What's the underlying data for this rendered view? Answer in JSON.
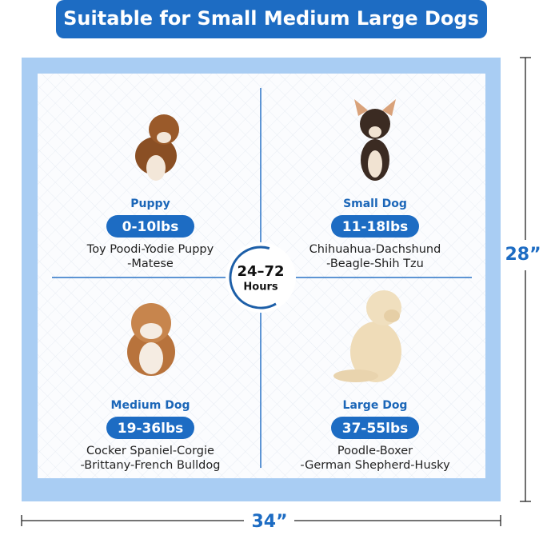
{
  "header": {
    "title": "Suitable for Small Medium Large Dogs"
  },
  "center_badge": {
    "line1": "24–72",
    "line2": "Hours"
  },
  "dimensions": {
    "height": "28”",
    "width": "34”"
  },
  "quadrants": [
    {
      "label": "Puppy",
      "weight": "0-10lbs",
      "breeds": [
        "Toy Poodi-Yodie Puppy",
        "-Matese"
      ]
    },
    {
      "label": "Small Dog",
      "weight": "11-18lbs",
      "breeds": [
        "Chihuahua-Dachshund",
        "-Beagle-Shih Tzu"
      ]
    },
    {
      "label": "Medium Dog",
      "weight": "19-36lbs",
      "breeds": [
        "Cocker Spaniel-Corgie",
        "-Brittany-French Bulldog"
      ]
    },
    {
      "label": "Large Dog",
      "weight": "37-55lbs",
      "breeds": [
        "Poodle-Boxer",
        "-German Shepherd-Husky"
      ]
    }
  ]
}
